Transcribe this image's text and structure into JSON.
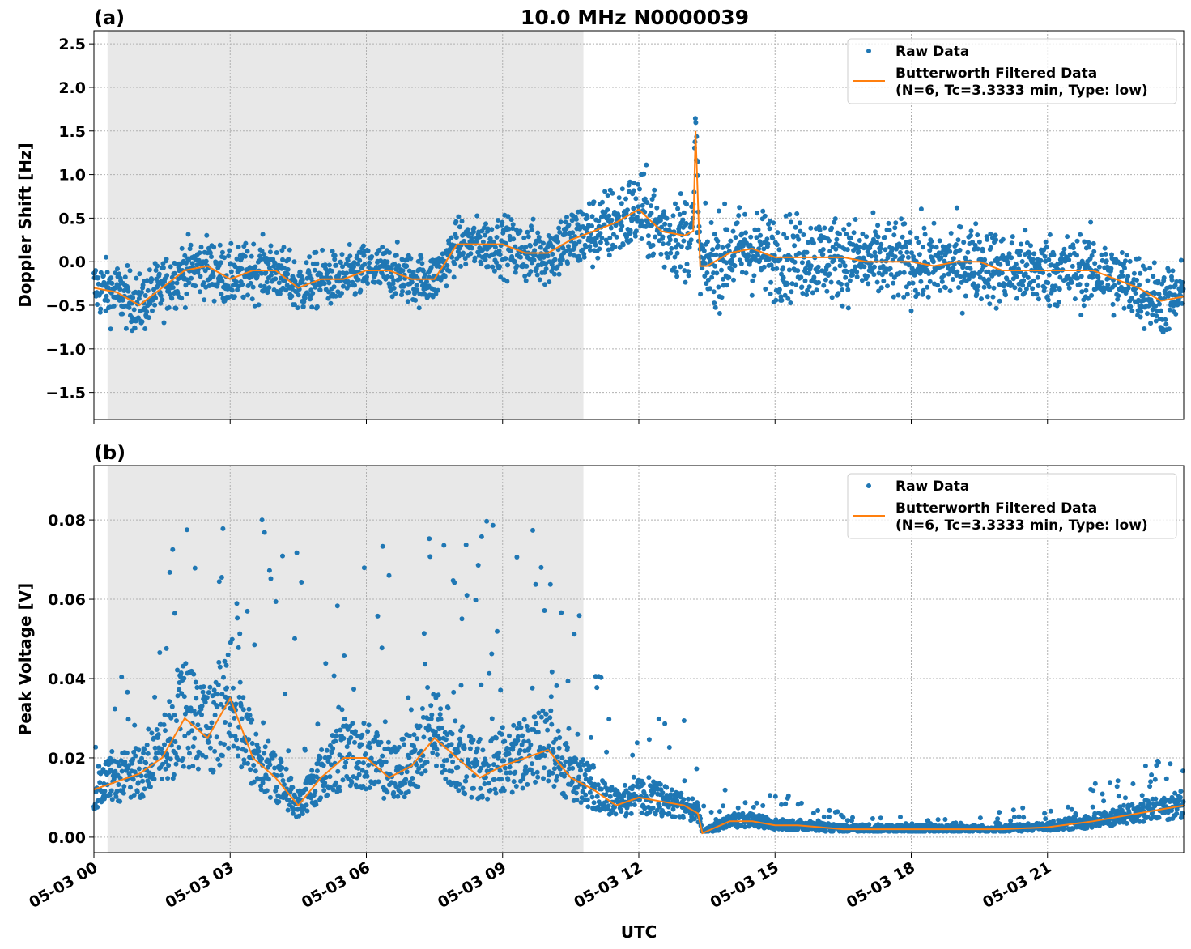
{
  "title": "10.0 MHz N0000039",
  "colors": {
    "raw": "#1f77b4",
    "filtered": "#ff7f0e",
    "shade": "#e8e8e8"
  },
  "chart_data": [
    {
      "type": "scatter",
      "panel_label": "(a)",
      "ylabel": "Doppler Shift [Hz]",
      "xlabel": "",
      "xlim": [
        0,
        24
      ],
      "ylim": [
        -1.81,
        2.65
      ],
      "x_unit": "hours UTC since 05-03 00",
      "xticks": [
        0,
        3,
        6,
        9,
        12,
        15,
        18,
        21
      ],
      "xtick_labels": [
        "05-03 00",
        "05-03 03",
        "05-03 06",
        "05-03 09",
        "05-03 12",
        "05-03 15",
        "05-03 18",
        "05-03 21"
      ],
      "yticks": [
        -1.5,
        -1.0,
        -0.5,
        0.0,
        0.5,
        1.0,
        1.5,
        2.0,
        2.5
      ],
      "ytick_labels": [
        "−1.5",
        "−1.0",
        "−0.5",
        "0.0",
        "0.5",
        "1.0",
        "1.5",
        "2.0",
        "2.5"
      ],
      "grid": true,
      "shaded_span_hours": [
        0.3,
        10.78
      ],
      "legend": {
        "placement": "top-right",
        "entries": [
          "Raw Data",
          "Butterworth Filtered Data",
          "(N=6, Tc=3.3333 min, Type: low)"
        ]
      },
      "series": [
        {
          "name": "Butterworth Filtered Data",
          "kind": "line",
          "x": [
            0,
            0.5,
            1,
            1.5,
            2,
            2.5,
            3,
            3.5,
            4,
            4.5,
            5,
            5.5,
            6,
            6.5,
            7,
            7.5,
            8,
            8.5,
            9,
            9.5,
            10,
            10.5,
            11,
            11.5,
            12,
            12.5,
            13,
            13.2,
            13.25,
            13.35,
            13.5,
            14,
            14.5,
            15,
            15.5,
            16,
            16.5,
            17,
            17.5,
            18,
            18.5,
            19,
            19.5,
            20,
            20.5,
            21,
            21.5,
            22,
            22.5,
            23,
            23.5,
            24
          ],
          "y": [
            -0.3,
            -0.35,
            -0.5,
            -0.3,
            -0.1,
            -0.05,
            -0.2,
            -0.1,
            -0.1,
            -0.3,
            -0.2,
            -0.2,
            -0.1,
            -0.1,
            -0.2,
            -0.2,
            0.2,
            0.2,
            0.2,
            0.1,
            0.1,
            0.25,
            0.35,
            0.45,
            0.6,
            0.35,
            0.3,
            0.35,
            1.5,
            -0.05,
            -0.05,
            0.1,
            0.15,
            0.05,
            0.05,
            0.05,
            0.05,
            0.0,
            0.0,
            0.0,
            -0.05,
            0.0,
            0.0,
            -0.1,
            -0.1,
            -0.1,
            -0.1,
            -0.1,
            -0.2,
            -0.3,
            -0.45,
            -0.4
          ]
        },
        {
          "name": "Raw Data",
          "kind": "scatter",
          "spread_x": [
            0,
            3,
            8,
            10.5,
            13,
            13.5,
            24
          ],
          "spread_halfwidth": [
            0.3,
            0.3,
            0.25,
            0.35,
            0.45,
            0.45,
            0.35
          ]
        }
      ]
    },
    {
      "type": "scatter",
      "panel_label": "(b)",
      "ylabel": "Peak Voltage [V]",
      "xlabel": "UTC",
      "xlim": [
        0,
        24
      ],
      "ylim": [
        -0.0039,
        0.0937
      ],
      "xticks": [
        0,
        3,
        6,
        9,
        12,
        15,
        18,
        21
      ],
      "xtick_labels": [
        "05-03 00",
        "05-03 03",
        "05-03 06",
        "05-03 09",
        "05-03 12",
        "05-03 15",
        "05-03 18",
        "05-03 21"
      ],
      "yticks": [
        0.0,
        0.02,
        0.04,
        0.06,
        0.08
      ],
      "ytick_labels": [
        "0.00",
        "0.02",
        "0.04",
        "0.06",
        "0.08"
      ],
      "grid": true,
      "shaded_span_hours": [
        0.3,
        10.78
      ],
      "legend": {
        "placement": "top-right",
        "entries": [
          "Raw Data",
          "Butterworth Filtered Data",
          "(N=6, Tc=3.3333 min, Type: low)"
        ]
      },
      "series": [
        {
          "name": "Butterworth Filtered Data",
          "kind": "line",
          "x": [
            0,
            0.5,
            1,
            1.5,
            2,
            2.5,
            3,
            3.5,
            4,
            4.5,
            5,
            5.5,
            6,
            6.5,
            7,
            7.5,
            8,
            8.5,
            9,
            9.5,
            10,
            10.5,
            11,
            11.5,
            12,
            12.5,
            13,
            13.3,
            13.4,
            14,
            14.5,
            15,
            15.5,
            16,
            16.5,
            17,
            18,
            19,
            20,
            21,
            22,
            22.5,
            23,
            23.5,
            24
          ],
          "y": [
            0.012,
            0.014,
            0.016,
            0.02,
            0.03,
            0.025,
            0.035,
            0.02,
            0.015,
            0.008,
            0.015,
            0.02,
            0.02,
            0.015,
            0.018,
            0.025,
            0.02,
            0.015,
            0.018,
            0.02,
            0.022,
            0.015,
            0.012,
            0.008,
            0.01,
            0.009,
            0.008,
            0.006,
            0.001,
            0.004,
            0.004,
            0.003,
            0.003,
            0.0025,
            0.002,
            0.002,
            0.002,
            0.002,
            0.002,
            0.0025,
            0.004,
            0.005,
            0.006,
            0.007,
            0.008
          ]
        },
        {
          "name": "Raw Data",
          "kind": "scatter",
          "upper_x": [
            0,
            1,
            2,
            3,
            4,
            5.5,
            7.5,
            10,
            11,
            12,
            13,
            13.4,
            14,
            15,
            16,
            18,
            21,
            22.5,
            24
          ],
          "upper_y": [
            0.03,
            0.05,
            0.082,
            0.085,
            0.085,
            0.072,
            0.081,
            0.089,
            0.053,
            0.023,
            0.04,
            0.008,
            0.014,
            0.012,
            0.007,
            0.005,
            0.008,
            0.016,
            0.022
          ]
        }
      ]
    }
  ]
}
